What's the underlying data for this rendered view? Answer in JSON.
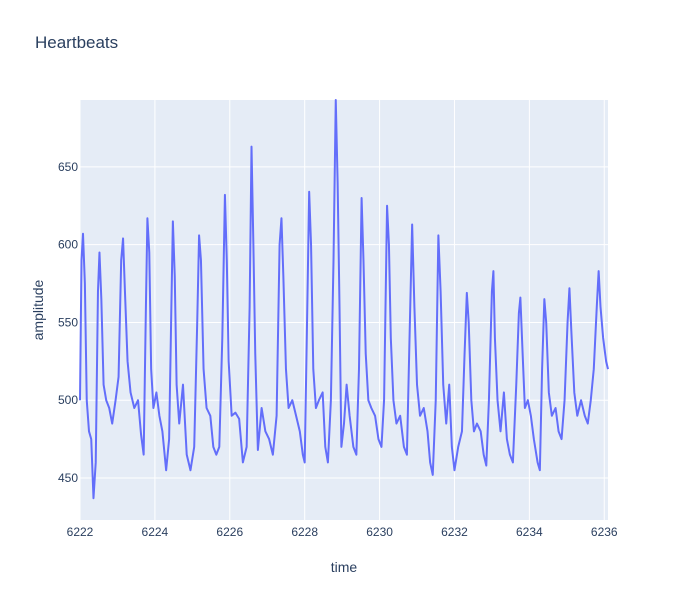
{
  "chart_data": {
    "type": "line",
    "title": "Heartbeats",
    "xlabel": "time",
    "ylabel": "amplitude",
    "xlim": [
      6222,
      6236.1
    ],
    "ylim": [
      423,
      693
    ],
    "x_ticks": [
      6222,
      6224,
      6226,
      6228,
      6230,
      6232,
      6234,
      6236
    ],
    "y_ticks": [
      450,
      500,
      550,
      600,
      650
    ],
    "grid": true,
    "plot_bg": "#e5ecf6",
    "line_color": "#636efa",
    "series": [
      {
        "values": [
          [
            6222.0,
            500
          ],
          [
            6222.04,
            590
          ],
          [
            6222.08,
            607
          ],
          [
            6222.13,
            575
          ],
          [
            6222.18,
            500
          ],
          [
            6222.24,
            480
          ],
          [
            6222.3,
            475
          ],
          [
            6222.36,
            437
          ],
          [
            6222.42,
            460
          ],
          [
            6222.48,
            570
          ],
          [
            6222.52,
            595
          ],
          [
            6222.57,
            565
          ],
          [
            6222.63,
            510
          ],
          [
            6222.7,
            500
          ],
          [
            6222.78,
            495
          ],
          [
            6222.86,
            485
          ],
          [
            6222.95,
            500
          ],
          [
            6223.03,
            515
          ],
          [
            6223.1,
            590
          ],
          [
            6223.15,
            604
          ],
          [
            6223.2,
            570
          ],
          [
            6223.27,
            525
          ],
          [
            6223.35,
            505
          ],
          [
            6223.45,
            495
          ],
          [
            6223.55,
            500
          ],
          [
            6223.63,
            478
          ],
          [
            6223.7,
            465
          ],
          [
            6223.76,
            560
          ],
          [
            6223.8,
            617
          ],
          [
            6223.85,
            595
          ],
          [
            6223.9,
            520
          ],
          [
            6223.96,
            495
          ],
          [
            6224.04,
            505
          ],
          [
            6224.12,
            490
          ],
          [
            6224.2,
            480
          ],
          [
            6224.3,
            455
          ],
          [
            6224.38,
            475
          ],
          [
            6224.44,
            560
          ],
          [
            6224.48,
            615
          ],
          [
            6224.53,
            580
          ],
          [
            6224.58,
            510
          ],
          [
            6224.65,
            485
          ],
          [
            6224.75,
            510
          ],
          [
            6224.85,
            465
          ],
          [
            6224.95,
            455
          ],
          [
            6225.05,
            470
          ],
          [
            6225.13,
            550
          ],
          [
            6225.18,
            606
          ],
          [
            6225.23,
            590
          ],
          [
            6225.3,
            520
          ],
          [
            6225.38,
            495
          ],
          [
            6225.48,
            490
          ],
          [
            6225.56,
            470
          ],
          [
            6225.64,
            465
          ],
          [
            6225.72,
            470
          ],
          [
            6225.8,
            540
          ],
          [
            6225.87,
            632
          ],
          [
            6225.92,
            590
          ],
          [
            6225.97,
            525
          ],
          [
            6226.05,
            490
          ],
          [
            6226.15,
            492
          ],
          [
            6226.25,
            488
          ],
          [
            6226.35,
            460
          ],
          [
            6226.45,
            470
          ],
          [
            6226.53,
            560
          ],
          [
            6226.58,
            663
          ],
          [
            6226.63,
            600
          ],
          [
            6226.68,
            530
          ],
          [
            6226.75,
            468
          ],
          [
            6226.85,
            495
          ],
          [
            6226.95,
            480
          ],
          [
            6227.05,
            475
          ],
          [
            6227.15,
            465
          ],
          [
            6227.25,
            490
          ],
          [
            6227.33,
            600
          ],
          [
            6227.38,
            617
          ],
          [
            6227.43,
            580
          ],
          [
            6227.5,
            520
          ],
          [
            6227.57,
            495
          ],
          [
            6227.67,
            500
          ],
          [
            6227.77,
            490
          ],
          [
            6227.87,
            480
          ],
          [
            6227.95,
            465
          ],
          [
            6228.0,
            460
          ],
          [
            6228.07,
            560
          ],
          [
            6228.12,
            634
          ],
          [
            6228.17,
            600
          ],
          [
            6228.23,
            520
          ],
          [
            6228.3,
            495
          ],
          [
            6228.38,
            500
          ],
          [
            6228.48,
            505
          ],
          [
            6228.55,
            470
          ],
          [
            6228.62,
            460
          ],
          [
            6228.7,
            500
          ],
          [
            6228.77,
            590
          ],
          [
            6228.83,
            693
          ],
          [
            6228.88,
            640
          ],
          [
            6228.93,
            560
          ],
          [
            6228.98,
            470
          ],
          [
            6229.05,
            485
          ],
          [
            6229.12,
            510
          ],
          [
            6229.2,
            490
          ],
          [
            6229.3,
            470
          ],
          [
            6229.38,
            465
          ],
          [
            6229.45,
            520
          ],
          [
            6229.52,
            630
          ],
          [
            6229.57,
            590
          ],
          [
            6229.63,
            530
          ],
          [
            6229.7,
            500
          ],
          [
            6229.78,
            495
          ],
          [
            6229.88,
            490
          ],
          [
            6229.97,
            475
          ],
          [
            6230.05,
            470
          ],
          [
            6230.12,
            500
          ],
          [
            6230.2,
            625
          ],
          [
            6230.25,
            600
          ],
          [
            6230.3,
            540
          ],
          [
            6230.37,
            500
          ],
          [
            6230.45,
            485
          ],
          [
            6230.55,
            490
          ],
          [
            6230.65,
            470
          ],
          [
            6230.73,
            465
          ],
          [
            6230.8,
            540
          ],
          [
            6230.87,
            613
          ],
          [
            6230.93,
            560
          ],
          [
            6231.0,
            510
          ],
          [
            6231.08,
            490
          ],
          [
            6231.18,
            495
          ],
          [
            6231.28,
            480
          ],
          [
            6231.35,
            460
          ],
          [
            6231.42,
            452
          ],
          [
            6231.5,
            500
          ],
          [
            6231.57,
            606
          ],
          [
            6231.63,
            570
          ],
          [
            6231.7,
            510
          ],
          [
            6231.78,
            485
          ],
          [
            6231.86,
            510
          ],
          [
            6231.93,
            470
          ],
          [
            6232.0,
            455
          ],
          [
            6232.1,
            470
          ],
          [
            6232.2,
            480
          ],
          [
            6232.27,
            530
          ],
          [
            6232.33,
            569
          ],
          [
            6232.38,
            550
          ],
          [
            6232.45,
            500
          ],
          [
            6232.52,
            480
          ],
          [
            6232.6,
            485
          ],
          [
            6232.7,
            480
          ],
          [
            6232.78,
            465
          ],
          [
            6232.85,
            458
          ],
          [
            6232.92,
            500
          ],
          [
            6233.0,
            570
          ],
          [
            6233.04,
            583
          ],
          [
            6233.08,
            540
          ],
          [
            6233.15,
            500
          ],
          [
            6233.23,
            480
          ],
          [
            6233.32,
            505
          ],
          [
            6233.4,
            475
          ],
          [
            6233.48,
            465
          ],
          [
            6233.56,
            460
          ],
          [
            6233.65,
            510
          ],
          [
            6233.72,
            556
          ],
          [
            6233.76,
            566
          ],
          [
            6233.82,
            530
          ],
          [
            6233.88,
            495
          ],
          [
            6233.96,
            500
          ],
          [
            6234.04,
            490
          ],
          [
            6234.12,
            475
          ],
          [
            6234.22,
            460
          ],
          [
            6234.28,
            455
          ],
          [
            6234.34,
            520
          ],
          [
            6234.4,
            565
          ],
          [
            6234.45,
            550
          ],
          [
            6234.52,
            505
          ],
          [
            6234.6,
            490
          ],
          [
            6234.7,
            495
          ],
          [
            6234.78,
            480
          ],
          [
            6234.86,
            475
          ],
          [
            6234.94,
            500
          ],
          [
            6235.02,
            550
          ],
          [
            6235.07,
            572
          ],
          [
            6235.12,
            545
          ],
          [
            6235.2,
            505
          ],
          [
            6235.28,
            490
          ],
          [
            6235.38,
            500
          ],
          [
            6235.48,
            490
          ],
          [
            6235.56,
            485
          ],
          [
            6235.64,
            500
          ],
          [
            6235.72,
            520
          ],
          [
            6235.8,
            560
          ],
          [
            6235.85,
            583
          ],
          [
            6235.9,
            560
          ],
          [
            6235.97,
            540
          ],
          [
            6236.05,
            525
          ],
          [
            6236.1,
            520
          ]
        ]
      }
    ]
  }
}
